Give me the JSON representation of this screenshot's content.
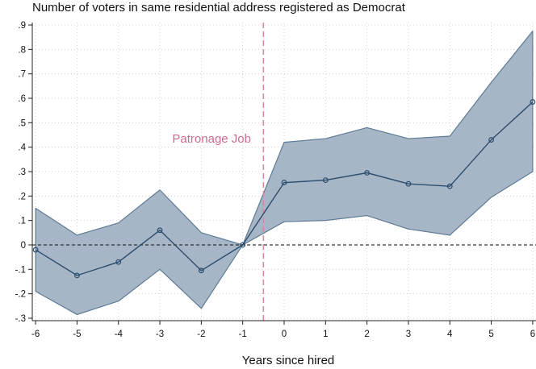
{
  "chart_data": {
    "type": "line",
    "title": "Number of voters in same residential address registered as Democrat",
    "xlabel": "Years since hired",
    "ylabel": "",
    "xlim": [
      -6.08,
      6.08
    ],
    "ylim": [
      -0.31,
      0.91
    ],
    "x_ticks": [
      -6,
      -5,
      -4,
      -3,
      -2,
      -1,
      0,
      1,
      2,
      3,
      4,
      5,
      6
    ],
    "x_tick_labels": [
      "-6",
      "-5",
      "-4",
      "-3",
      "-2",
      "-1",
      "0",
      "1",
      "2",
      "3",
      "4",
      "5",
      "6"
    ],
    "y_ticks": [
      -0.3,
      -0.2,
      -0.1,
      0,
      0.1,
      0.2,
      0.3,
      0.4,
      0.5,
      0.6,
      0.7,
      0.8,
      0.9
    ],
    "y_tick_labels": [
      "-.3",
      "-.2",
      "-.1",
      "0",
      ".1",
      ".2",
      ".3",
      ".4",
      ".5",
      ".6",
      ".7",
      ".8",
      ".9"
    ],
    "grid": true,
    "reference_line_y": 0,
    "reference_line_x": -0.5,
    "annotation": "Patronage Job",
    "x": [
      -6,
      -5,
      -4,
      -3,
      -2,
      -1,
      0,
      1,
      2,
      3,
      4,
      5,
      6
    ],
    "estimate": [
      -0.02,
      -0.125,
      -0.07,
      0.06,
      -0.105,
      0.0,
      0.255,
      0.265,
      0.295,
      0.25,
      0.24,
      0.43,
      0.585
    ],
    "ci_lower": [
      -0.19,
      -0.285,
      -0.23,
      -0.1,
      -0.26,
      0.0,
      0.095,
      0.1,
      0.12,
      0.065,
      0.04,
      0.195,
      0.3
    ],
    "ci_upper": [
      0.15,
      0.04,
      0.09,
      0.225,
      0.05,
      0.0,
      0.42,
      0.435,
      0.48,
      0.435,
      0.445,
      0.665,
      0.875
    ],
    "colors": {
      "band_fill": "#a6b6c6",
      "band_stroke": "#5e7b95",
      "line": "#2b4d6e",
      "marker": "#2b4d6e",
      "reference": "#333333",
      "vline": "#d9849f",
      "annotation": "#cf6a92",
      "grid": "#c9c9c9",
      "axis": "#222222"
    }
  }
}
